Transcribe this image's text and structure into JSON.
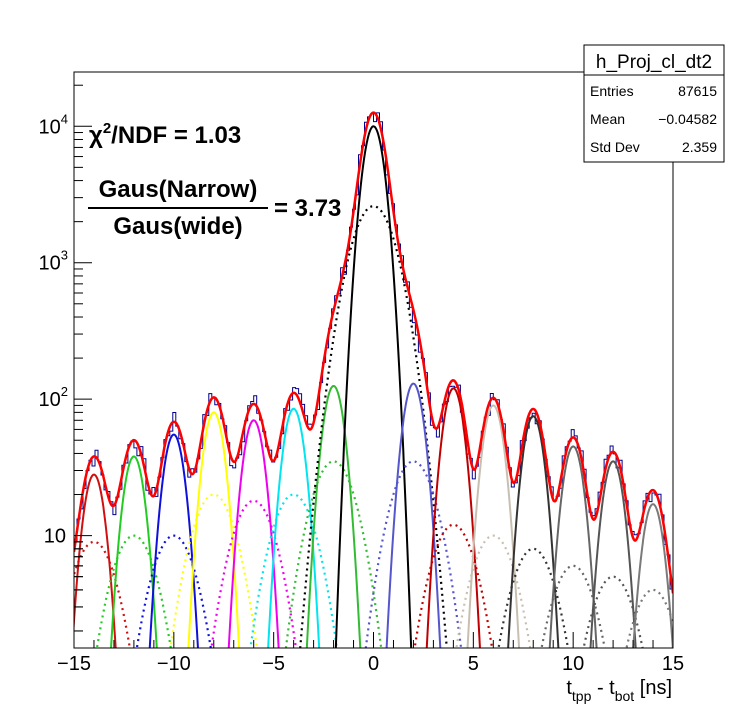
{
  "chart_data": {
    "type": "line",
    "title": "",
    "stats_box": {
      "title": "h_Proj_cl_dt2",
      "rows": [
        {
          "label": "Entries",
          "value": "87615"
        },
        {
          "label": "Mean",
          "value": "−0.04582"
        },
        {
          "label": "Std Dev",
          "value": "2.359"
        }
      ]
    },
    "annotations": {
      "chi2_prefix": "χ",
      "chi2_sup": "2",
      "chi2_rest": "/NDF = 1.03",
      "ratio_numerator": "Gaus(Narrow)",
      "ratio_denominator": "Gaus(wide)",
      "ratio_value": "= 3.73"
    },
    "xlabel": {
      "main": "t",
      "sub1": "tpp",
      "mid": " - t",
      "sub2": "bot",
      "unit": " [ns]"
    },
    "ylabel": "",
    "y_scale": "log",
    "xlim": [
      -15,
      15
    ],
    "ylim": [
      1.5,
      25000
    ],
    "x_ticks": [
      {
        "v": -15,
        "t": "−15"
      },
      {
        "v": -10,
        "t": "−10"
      },
      {
        "v": -5,
        "t": "−5"
      },
      {
        "v": 0,
        "t": "0"
      },
      {
        "v": 5,
        "t": "5"
      },
      {
        "v": 10,
        "t": "10"
      },
      {
        "v": 15,
        "t": "15"
      }
    ],
    "y_ticks": [
      {
        "v": 10,
        "b": "10",
        "e": ""
      },
      {
        "v": 100,
        "b": "10",
        "e": "2"
      },
      {
        "v": 1000,
        "b": "10",
        "e": "3"
      },
      {
        "v": 10000,
        "b": "10",
        "e": "4"
      }
    ],
    "peaks": [
      {
        "x": -14.0,
        "n": 28,
        "w": 9,
        "color": "#d01010"
      },
      {
        "x": -12.0,
        "n": 38,
        "w": 10,
        "color": "#22cc22"
      },
      {
        "x": -10.0,
        "n": 55,
        "w": 10,
        "color": "#1010dd"
      },
      {
        "x": -8.0,
        "n": 80,
        "w": 20,
        "color": "#ffff00"
      },
      {
        "x": -6.0,
        "n": 70,
        "w": 18,
        "color": "#ee00ee"
      },
      {
        "x": -4.0,
        "n": 85,
        "w": 20,
        "color": "#00e5ee"
      },
      {
        "x": -2.0,
        "n": 125,
        "w": 35,
        "color": "#33bb33"
      },
      {
        "x": 0.0,
        "n": 10000,
        "w": 2600,
        "color": "#000000"
      },
      {
        "x": 2.0,
        "n": 130,
        "w": 35,
        "color": "#5555cc"
      },
      {
        "x": 4.0,
        "n": 120,
        "w": 12,
        "color": "#c00000"
      },
      {
        "x": 6.0,
        "n": 90,
        "w": 10,
        "color": "#c8bfb0"
      },
      {
        "x": 8.0,
        "n": 75,
        "w": 8,
        "color": "#333333"
      },
      {
        "x": 10.0,
        "n": 45,
        "w": 6,
        "color": "#666666"
      },
      {
        "x": 12.0,
        "n": 35,
        "w": 5,
        "color": "#555555"
      },
      {
        "x": 14.0,
        "n": 17,
        "w": 4,
        "color": "#7a7a7a"
      }
    ],
    "narrow_sigma": 0.45,
    "wide_sigma": 0.95,
    "histogram_color": "#00008b",
    "total_fit_color": "#ff0000",
    "grid": false,
    "legend": "top-right stats box"
  }
}
